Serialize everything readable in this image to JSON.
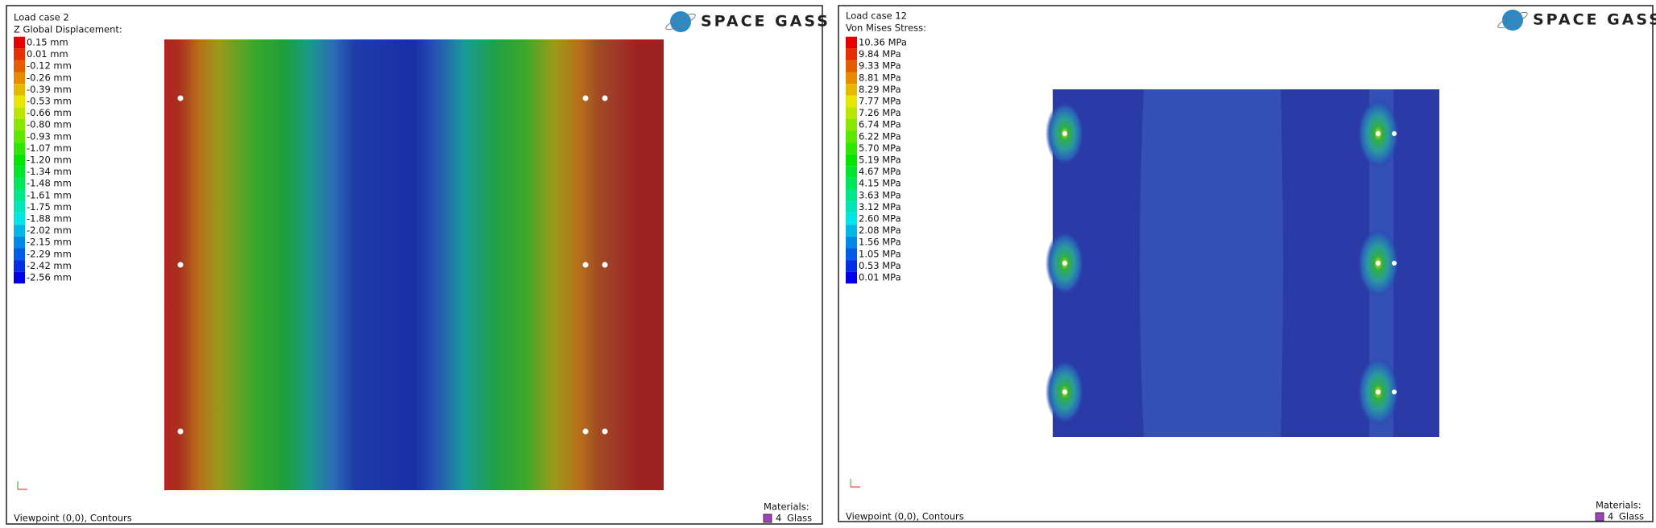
{
  "panels": [
    {
      "load_case": "Load case 2",
      "result": "Z Global Displacement:",
      "legend": [
        "0.15 mm",
        "0.01 mm",
        "-0.12 mm",
        "-0.26 mm",
        "-0.39 mm",
        "-0.53 mm",
        "-0.66 mm",
        "-0.80 mm",
        "-0.93 mm",
        "-1.07 mm",
        "-1.20 mm",
        "-1.34 mm",
        "-1.48 mm",
        "-1.61 mm",
        "-1.75 mm",
        "-1.88 mm",
        "-2.02 mm",
        "-2.15 mm",
        "-2.29 mm",
        "-2.42 mm",
        "-2.56 mm"
      ],
      "logo": "SPACE GASS",
      "viewpoint": "Viewpoint (0,0), Contours",
      "materials_title": "Materials:",
      "material_id": "4",
      "material_name": "Glass"
    },
    {
      "load_case": "Load case 12",
      "result": "Von Mises Stress:",
      "legend": [
        "10.36 MPa",
        "9.84 MPa",
        "9.33 MPa",
        "8.81 MPa",
        "8.29 MPa",
        "7.77 MPa",
        "7.26 MPa",
        "6.74 MPa",
        "6.22 MPa",
        "5.70 MPa",
        "5.19 MPa",
        "4.67 MPa",
        "4.15 MPa",
        "3.63 MPa",
        "3.12 MPa",
        "2.60 MPa",
        "2.08 MPa",
        "1.56 MPa",
        "1.05 MPa",
        "0.53 MPa",
        "0.01 MPa"
      ],
      "logo": "SPACE GASS",
      "viewpoint": "Viewpoint (0,0), Contours",
      "materials_title": "Materials:",
      "material_id": "4",
      "material_name": "Glass"
    }
  ]
}
